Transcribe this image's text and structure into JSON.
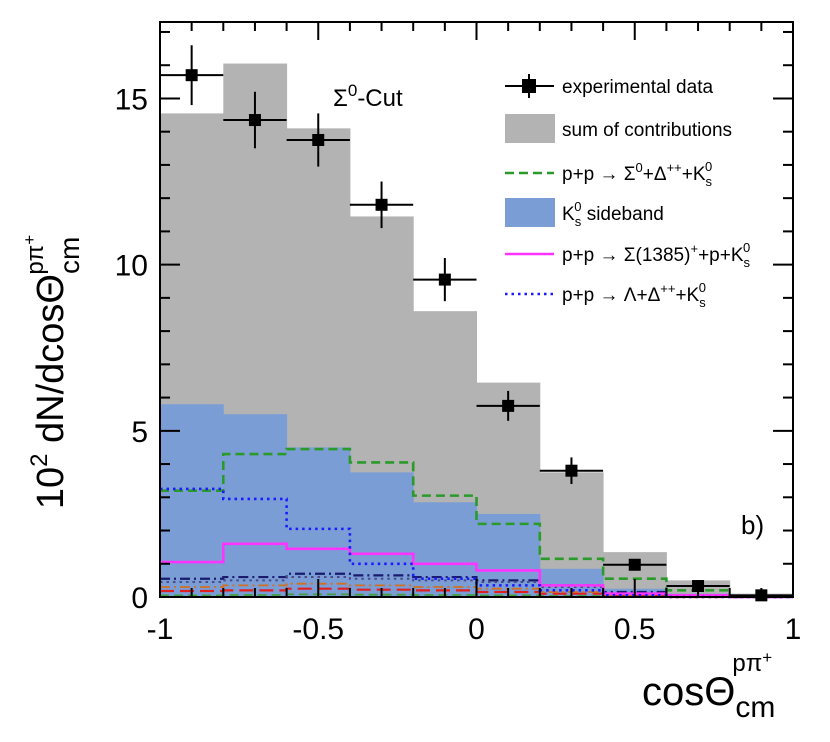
{
  "chart_data": {
    "type": "bar",
    "title": "",
    "annotation": "Σ⁰-Cut",
    "panel_label": "b)",
    "xlabel": {
      "main": "cosΘ",
      "sup": "pπ⁺",
      "sub": "cm"
    },
    "ylabel": {
      "main": "10² dN/dcosΘ",
      "sup": "pπ⁺",
      "sub": "cm"
    },
    "xlim": [
      -1,
      1
    ],
    "ylim": [
      0,
      17.3
    ],
    "xticks": [
      {
        "v": -1,
        "label": "-1"
      },
      {
        "v": -0.5,
        "label": "-0.5"
      },
      {
        "v": 0,
        "label": "0"
      },
      {
        "v": 0.5,
        "label": "0.5"
      },
      {
        "v": 1,
        "label": "1"
      }
    ],
    "yticks": [
      {
        "v": 0,
        "label": "0"
      },
      {
        "v": 5,
        "label": "5"
      },
      {
        "v": 10,
        "label": "10"
      },
      {
        "v": 15,
        "label": "15"
      }
    ],
    "bin_edges": [
      -1,
      -0.8,
      -0.6,
      -0.4,
      -0.2,
      0,
      0.2,
      0.4,
      0.6,
      0.8,
      1.0
    ],
    "experimental_data": {
      "name": "experimental data",
      "x": [
        -0.9,
        -0.7,
        -0.5,
        -0.3,
        -0.1,
        0.1,
        0.3,
        0.5,
        0.7,
        0.9
      ],
      "y": [
        15.7,
        14.35,
        13.75,
        11.8,
        9.55,
        5.75,
        3.8,
        0.97,
        0.33,
        0.05
      ],
      "err": [
        0.9,
        0.85,
        0.8,
        0.7,
        0.65,
        0.45,
        0.4,
        0.15,
        0.1,
        0.03
      ]
    },
    "sum_of_contributions": {
      "name": "sum of contributions",
      "values": [
        14.55,
        16.05,
        14.1,
        11.45,
        8.6,
        6.45,
        3.75,
        1.35,
        0.5,
        0.1
      ],
      "color": "#b3b3b3"
    },
    "ks_sideband": {
      "name": "K⁰s sideband",
      "values": [
        5.8,
        5.5,
        4.5,
        3.75,
        2.85,
        2.5,
        0.85,
        0.25,
        0.1,
        0.0
      ],
      "color": "#7b9dd6"
    },
    "lines": [
      {
        "name": "p+p → Σ⁰+Δ⁺⁺+K⁰s",
        "style": "dashed",
        "color": "#2a9a2a",
        "width": 2.6,
        "values": [
          3.2,
          4.3,
          4.45,
          4.05,
          3.05,
          2.2,
          1.15,
          0.55,
          0.2,
          0.02
        ]
      },
      {
        "name": "p+p → Σ(1385)⁺+p+K⁰s",
        "style": "solid",
        "color": "#ff33ff",
        "width": 2.6,
        "values": [
          1.05,
          1.6,
          1.45,
          1.3,
          1.0,
          0.8,
          0.35,
          0.1,
          0.05,
          0.0
        ]
      },
      {
        "name": "p+p → Λ+Δ⁺⁺+K⁰s",
        "style": "dotted",
        "color": "#1a1aff",
        "width": 2.6,
        "values": [
          3.25,
          2.95,
          2.05,
          1.0,
          0.55,
          0.35,
          0.2,
          0.05,
          0.0,
          0.0
        ]
      }
    ],
    "extra_lines": [
      {
        "style": "dashdot",
        "color": "#1a1a6e",
        "width": 2.2,
        "values": [
          0.55,
          0.6,
          0.7,
          0.65,
          0.6,
          0.5,
          0.35,
          0.15,
          0.05,
          0.0
        ]
      },
      {
        "style": "dotted",
        "color": "#4a4a8a",
        "width": 2.0,
        "values": [
          0.45,
          0.5,
          0.6,
          0.55,
          0.5,
          0.45,
          0.3,
          0.1,
          0.05,
          0.0
        ]
      },
      {
        "style": "longdash",
        "color": "#e02020",
        "width": 2.2,
        "values": [
          0.18,
          0.2,
          0.25,
          0.22,
          0.2,
          0.15,
          0.1,
          0.05,
          0.0,
          0.0
        ]
      },
      {
        "style": "dashdot",
        "color": "#d07020",
        "width": 1.8,
        "values": [
          0.3,
          0.35,
          0.4,
          0.35,
          0.3,
          0.25,
          0.15,
          0.05,
          0.0,
          0.0
        ]
      },
      {
        "style": "dashed",
        "color": "#40a040",
        "width": 1.8,
        "values": [
          0.05,
          0.06,
          0.08,
          0.07,
          0.06,
          0.05,
          0.03,
          0.01,
          0.0,
          0.0
        ]
      }
    ],
    "legend": {
      "position": "top-right",
      "items": [
        {
          "label_main": "experimental data"
        },
        {
          "label_main": "sum of contributions"
        },
        {
          "label_main": "p+p → Σ",
          "parts": [
            [
              "Σ",
              "0",
              "sup"
            ],
            [
              "+Δ",
              "++",
              "sup"
            ],
            [
              "+K",
              "0",
              "supsub:s"
            ]
          ]
        },
        {
          "label_main": "K⁰s sideband"
        },
        {
          "label_main": "p+p → Σ(1385)⁺+p+K⁰s"
        },
        {
          "label_main": "p+p → Λ+Δ⁺⁺+K⁰s"
        }
      ]
    }
  }
}
